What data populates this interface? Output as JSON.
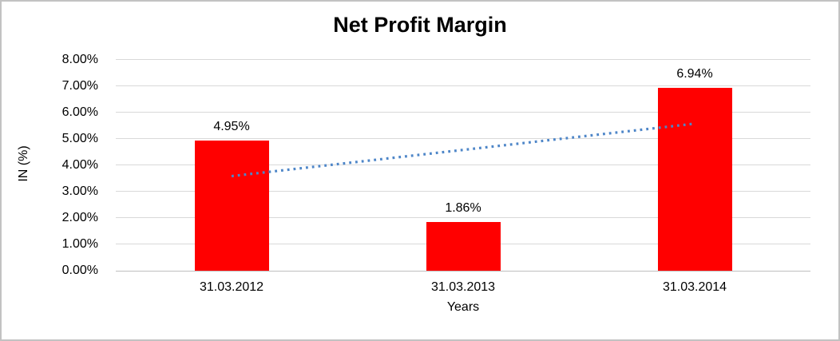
{
  "chart_data": {
    "type": "bar",
    "title": "Net Profit Margin",
    "xlabel": "Years",
    "ylabel": "IN (%)",
    "categories": [
      "31.03.2012",
      "31.03.2013",
      "31.03.2014"
    ],
    "values": [
      4.95,
      1.86,
      6.94
    ],
    "data_labels": [
      "4.95%",
      "1.86%",
      "6.94%"
    ],
    "ylim": [
      0,
      8
    ],
    "ytick_labels": [
      "0.00%",
      "1.00%",
      "2.00%",
      "3.00%",
      "4.00%",
      "5.00%",
      "6.00%",
      "7.00%",
      "8.00%"
    ],
    "ytick_values": [
      0,
      1,
      2,
      3,
      4,
      5,
      6,
      7,
      8
    ],
    "grid": "horizontal",
    "legend": "none",
    "bar_color": "#ff0000",
    "trendline": {
      "type": "linear",
      "style": "dotted",
      "color": "#4e86c8",
      "start_pct": 3.59,
      "end_pct": 5.58
    },
    "gridline_color": "#d9d9d9",
    "axis_line_color": "#bfbfbf",
    "text_color": "#000000"
  }
}
